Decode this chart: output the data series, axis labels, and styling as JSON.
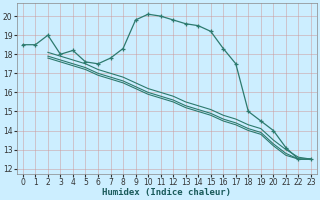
{
  "xlabel": "Humidex (Indice chaleur)",
  "background_color": "#cceeff",
  "grid_color": "#aacccc",
  "line_color": "#2d7a6e",
  "xlim": [
    -0.5,
    23.5
  ],
  "ylim": [
    11.7,
    20.7
  ],
  "yticks": [
    12,
    13,
    14,
    15,
    16,
    17,
    18,
    19,
    20
  ],
  "xticks": [
    0,
    1,
    2,
    3,
    4,
    5,
    6,
    7,
    8,
    9,
    10,
    11,
    12,
    13,
    14,
    15,
    16,
    17,
    18,
    19,
    20,
    21,
    22,
    23
  ],
  "series_main": {
    "x": [
      0,
      1,
      2,
      3,
      4,
      5,
      6,
      7,
      8,
      9,
      10,
      11,
      12,
      13,
      14,
      15,
      16,
      17,
      18,
      19,
      20,
      21,
      22,
      23
    ],
    "y": [
      18.5,
      18.5,
      19.0,
      18.0,
      18.2,
      17.6,
      17.5,
      17.8,
      18.3,
      19.8,
      20.1,
      20.0,
      19.8,
      19.6,
      19.5,
      19.2,
      18.3,
      17.5,
      15.0,
      14.5,
      14.0,
      13.1,
      12.5,
      12.5
    ]
  },
  "series_lines": [
    {
      "x": [
        2,
        3,
        4,
        5,
        6,
        7,
        8,
        9,
        10,
        11,
        12,
        13,
        14,
        15,
        16,
        17,
        18,
        19,
        20,
        21,
        22,
        23
      ],
      "y": [
        18.1,
        17.9,
        17.7,
        17.5,
        17.2,
        17.0,
        16.8,
        16.5,
        16.2,
        16.0,
        15.8,
        15.5,
        15.3,
        15.1,
        14.8,
        14.6,
        14.3,
        14.1,
        13.5,
        13.0,
        12.6,
        12.5
      ]
    },
    {
      "x": [
        2,
        3,
        4,
        5,
        6,
        7,
        8,
        9,
        10,
        11,
        12,
        13,
        14,
        15,
        16,
        17,
        18,
        19,
        20,
        21,
        22,
        23
      ],
      "y": [
        17.9,
        17.7,
        17.5,
        17.3,
        17.0,
        16.8,
        16.6,
        16.3,
        16.0,
        15.8,
        15.6,
        15.3,
        15.1,
        14.9,
        14.6,
        14.4,
        14.1,
        13.9,
        13.3,
        12.8,
        12.5,
        12.5
      ]
    },
    {
      "x": [
        2,
        3,
        4,
        5,
        6,
        7,
        8,
        9,
        10,
        11,
        12,
        13,
        14,
        15,
        16,
        17,
        18,
        19,
        20,
        21,
        22,
        23
      ],
      "y": [
        17.8,
        17.6,
        17.4,
        17.2,
        16.9,
        16.7,
        16.5,
        16.2,
        15.9,
        15.7,
        15.5,
        15.2,
        15.0,
        14.8,
        14.5,
        14.3,
        14.0,
        13.8,
        13.2,
        12.7,
        12.5,
        12.5
      ]
    }
  ]
}
